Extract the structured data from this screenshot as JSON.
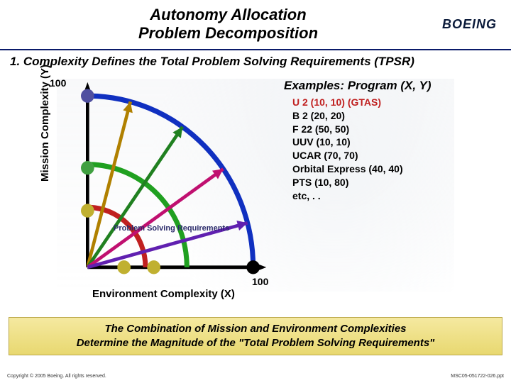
{
  "header": {
    "title_line1": "Autonomy Allocation",
    "title_line2": "Problem Decomposition",
    "logo_text": "BOEING"
  },
  "section_heading": "1. Complexity Defines the Total Problem Solving Requirements (TPSR)",
  "chart": {
    "type": "arc-diagram",
    "xlabel": "Environment Complexity (X)",
    "ylabel": "Mission Complexity (Y)",
    "xlim": [
      0,
      100
    ],
    "ylim": [
      0,
      100
    ],
    "x_tick_label": "100",
    "y_tick_label": "100",
    "inner_label": "Problem Solving Requirements",
    "axis_color": "#000000",
    "arcs": [
      {
        "radius": 35,
        "color": "#c02020",
        "width": 3
      },
      {
        "radius": 60,
        "color": "#20a020",
        "width": 3
      },
      {
        "radius": 100,
        "color": "#1030c0",
        "width": 3
      }
    ],
    "vectors": [
      {
        "angle_deg": 75,
        "length": 100,
        "color": "#b08000",
        "width": 2
      },
      {
        "angle_deg": 55,
        "length": 100,
        "color": "#208020",
        "width": 2
      },
      {
        "angle_deg": 35,
        "length": 100,
        "color": "#c01070",
        "width": 2
      },
      {
        "angle_deg": 15,
        "length": 100,
        "color": "#6020b0",
        "width": 2
      }
    ],
    "markers": [
      {
        "x": 0,
        "y": 100,
        "color": "#5050a0",
        "r": 4
      },
      {
        "x": 0,
        "y": 58,
        "color": "#40a040",
        "r": 4
      },
      {
        "x": 0,
        "y": 33,
        "color": "#c0b030",
        "r": 4
      },
      {
        "x": 22,
        "y": 0,
        "color": "#c0b030",
        "r": 4
      },
      {
        "x": 40,
        "y": 0,
        "color": "#c0b030",
        "r": 4
      },
      {
        "x": 100,
        "y": 0,
        "color": "#000000",
        "r": 4
      }
    ],
    "background_color": "#ffffff"
  },
  "examples": {
    "title": "Examples:  Program (X, Y)",
    "items": [
      {
        "text": "U 2 (10, 10) (GTAS)",
        "color": "#c02020"
      },
      {
        "text": "B 2 (20, 20)",
        "color": "#000000"
      },
      {
        "text": "F 22 (50, 50)",
        "color": "#000000"
      },
      {
        "text": "UUV (10, 10)",
        "color": "#000000"
      },
      {
        "text": "UCAR (70, 70)",
        "color": "#000000"
      },
      {
        "text": "Orbital Express (40, 40)",
        "color": "#000000"
      },
      {
        "text": "PTS (10, 80)",
        "color": "#000000"
      },
      {
        "text": "etc, . .",
        "color": "#000000"
      }
    ]
  },
  "conclusion": {
    "line1": "The Combination of  Mission and Environment Complexities",
    "line2": "Determine the Magnitude of the \"Total Problem Solving Requirements\"",
    "background_gradient": [
      "#f5e9a0",
      "#e8d870"
    ],
    "border_color": "#bba84a"
  },
  "footer": {
    "left": "Copyright © 2005 Boeing. All rights reserved.",
    "right": "MSC05-051722-026.ppt"
  }
}
